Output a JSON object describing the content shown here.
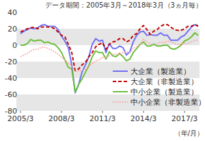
{
  "chart_data": {
    "type": "line",
    "title": "データ期間：2005年3月～2018年3月（3ヵ月毎）",
    "x_label": "（年/月）",
    "categories": [
      "2005/3",
      null,
      null,
      null,
      null,
      null,
      null,
      null,
      null,
      null,
      null,
      null,
      "2008/3",
      null,
      null,
      null,
      null,
      null,
      null,
      null,
      null,
      null,
      null,
      null,
      "2011/3",
      null,
      null,
      null,
      null,
      null,
      null,
      null,
      null,
      null,
      null,
      null,
      "2014/3",
      null,
      null,
      null,
      null,
      null,
      null,
      null,
      null,
      null,
      null,
      null,
      "2017/3",
      null,
      null,
      null,
      null
    ],
    "ylim": [
      -80,
      40
    ],
    "yticks": [
      -80,
      -60,
      -40,
      -20,
      0,
      20,
      40
    ],
    "grid": true,
    "legend": "lower right",
    "series": [
      {
        "name": "大企業（製造業）",
        "color": "#6f6ff5",
        "line_style": "solid",
        "values": [
          14,
          17,
          19,
          21,
          20,
          21,
          24,
          25,
          23,
          23,
          23,
          19,
          11,
          5,
          -3,
          -24,
          -58,
          -48,
          -33,
          -24,
          -14,
          1,
          8,
          5,
          6,
          -9,
          2,
          -4,
          -4,
          -1,
          -3,
          -12,
          -8,
          4,
          12,
          16,
          17,
          12,
          13,
          12,
          12,
          15,
          12,
          12,
          6,
          6,
          6,
          10,
          12,
          17,
          22,
          25,
          24
        ]
      },
      {
        "name": "大企業（非製造業）",
        "color": "#c00000",
        "line_style": "dashed",
        "values": [
          16,
          18,
          20,
          21,
          22,
          20,
          22,
          22,
          22,
          22,
          20,
          16,
          12,
          10,
          1,
          -9,
          -31,
          -29,
          -24,
          -21,
          -14,
          -9,
          -2,
          1,
          3,
          -5,
          1,
          4,
          5,
          8,
          8,
          4,
          6,
          12,
          14,
          20,
          24,
          19,
          13,
          17,
          19,
          23,
          25,
          25,
          22,
          19,
          18,
          18,
          20,
          23,
          23,
          25,
          23
        ]
      },
      {
        "name": "中小企業（製造業）",
        "color": "#6cbf3c",
        "line_style": "solid",
        "values": [
          0,
          0,
          2,
          7,
          5,
          6,
          6,
          3,
          4,
          2,
          1,
          -3,
          -9,
          -18,
          -27,
          -29,
          -57,
          -48,
          -41,
          -33,
          -25,
          -14,
          -7,
          -9,
          -9,
          -17,
          -8,
          -13,
          -14,
          -10,
          -14,
          -19,
          -17,
          -9,
          -4,
          1,
          4,
          -1,
          -1,
          1,
          -1,
          -1,
          0,
          0,
          -4,
          -5,
          -3,
          0,
          5,
          7,
          10,
          15,
          12
        ]
      },
      {
        "name": "中小企業（非製造業）",
        "color": "#ff9f9f",
        "line_style": "dotted",
        "values": [
          -14,
          -12,
          -10,
          -7,
          -5,
          -5,
          -3,
          -2,
          -4,
          -6,
          -8,
          -11,
          -15,
          -18,
          -22,
          -25,
          -32,
          -31,
          -31,
          -30,
          -26,
          -22,
          -19,
          -18,
          -15,
          -16,
          -13,
          -11,
          -11,
          -11,
          -9,
          -8,
          -9,
          -4,
          -2,
          1,
          7,
          4,
          1,
          2,
          1,
          4,
          3,
          5,
          4,
          2,
          1,
          1,
          2,
          2,
          4,
          6,
          6
        ]
      }
    ]
  }
}
